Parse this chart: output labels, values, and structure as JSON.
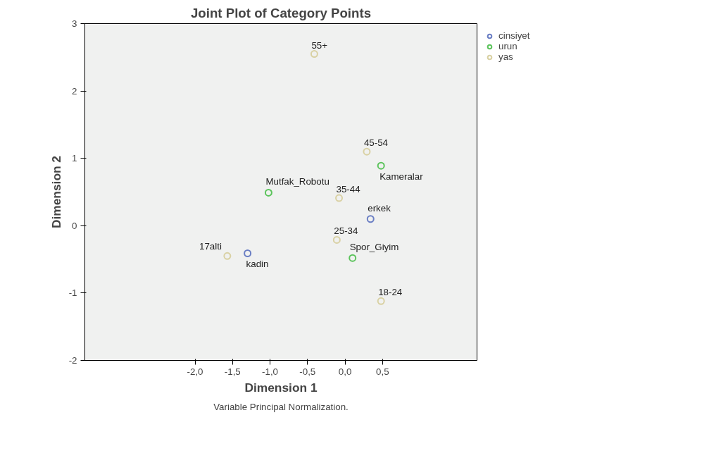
{
  "chart_data": {
    "type": "scatter",
    "title": "Joint Plot of Category Points",
    "xlabel": "Dimension 1",
    "ylabel": "Dimension 2",
    "xlim": [
      -3.47,
      1.76
    ],
    "ylim": [
      -2,
      3
    ],
    "xticks": [
      {
        "value": -2,
        "label": "-2,0"
      },
      {
        "value": -1.5,
        "label": "-1,5"
      },
      {
        "value": -1,
        "label": "-1,0"
      },
      {
        "value": -0.5,
        "label": "-0,5"
      },
      {
        "value": 0,
        "label": "0,0"
      },
      {
        "value": 0.5,
        "label": "0,5"
      }
    ],
    "yticks": [
      -2,
      -1,
      0,
      1,
      2,
      3
    ],
    "grid": false,
    "legend": "top right",
    "marker": "circle",
    "series": [
      {
        "name": "cinsiyet",
        "color": "#6b7fc4",
        "x": [
          0.34,
          -1.3
        ],
        "values": [
          0.1,
          -0.41
        ]
      },
      {
        "name": "urun",
        "color": "#5cc45c",
        "x": [
          0.48,
          -1.02,
          0.1
        ],
        "values": [
          0.89,
          0.49,
          -0.48
        ]
      },
      {
        "name": "yas",
        "color": "#d9d1a3",
        "x": [
          -0.41,
          0.29,
          -0.08,
          -0.11,
          -1.57,
          0.48
        ],
        "values": [
          2.55,
          1.1,
          0.41,
          -0.21,
          -0.45,
          -1.12
        ]
      }
    ],
    "annotations": [
      {
        "text": "erkek",
        "x": 0.34,
        "y": 0.1
      },
      {
        "text": "kadin",
        "x": -1.3,
        "y": -0.41
      },
      {
        "text": "Kameralar",
        "x": 0.48,
        "y": 0.89
      },
      {
        "text": "Mutfak_Robotu",
        "x": -1.02,
        "y": 0.49
      },
      {
        "text": "Spor_Giyim",
        "x": 0.1,
        "y": -0.48
      },
      {
        "text": "55+",
        "x": -0.41,
        "y": 2.55
      },
      {
        "text": "45-54",
        "x": 0.29,
        "y": 1.1
      },
      {
        "text": "35-44",
        "x": -0.08,
        "y": 0.41
      },
      {
        "text": "25-34",
        "x": -0.11,
        "y": -0.21
      },
      {
        "text": "17alti",
        "x": -1.57,
        "y": -0.45
      },
      {
        "text": "18-24",
        "x": 0.48,
        "y": -1.12
      },
      "Variable Principal Normalization."
    ]
  }
}
